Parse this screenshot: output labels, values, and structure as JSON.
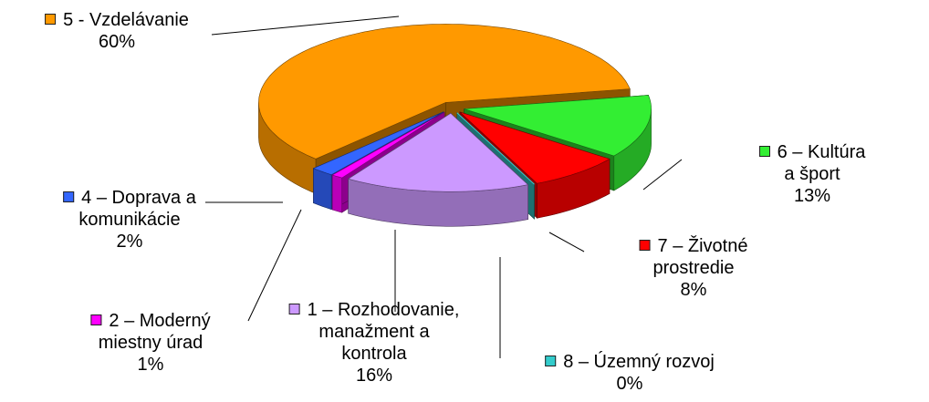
{
  "chart_data": {
    "type": "pie3d",
    "categories": [
      "5 - Vzdelávanie",
      "6 – Kultúra a šport",
      "7 – Životné\nprostredie",
      "8 – Územný rozvoj",
      "1 – Rozhodovanie,\nmanažment a\nkontrola",
      "2 – Moderný\nmiestny úrad",
      "4 – Doprava a\nkomunikácie"
    ],
    "values": [
      60,
      13,
      8,
      0,
      16,
      1,
      2
    ],
    "value_labels": [
      "60%",
      "13%",
      "8%",
      "0%",
      "16%",
      "1%",
      "2%"
    ],
    "colors": [
      "#ff9900",
      "#33ee33",
      "#ff0000",
      "#33cccc",
      "#cc99ff",
      "#ff00ff",
      "#3366ff"
    ]
  }
}
